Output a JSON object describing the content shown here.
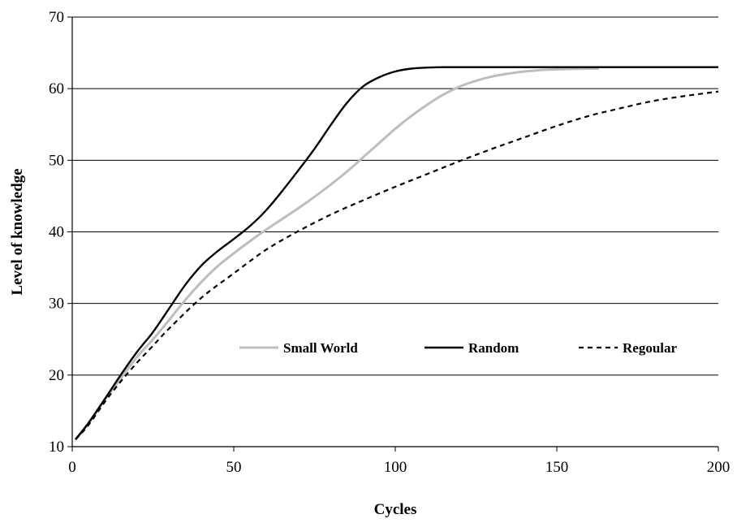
{
  "chart_data": {
    "type": "line",
    "xlabel": "Cycles",
    "ylabel": "Level of knowledge",
    "xlim": [
      0,
      200
    ],
    "ylim": [
      10,
      70
    ],
    "xticks": [
      0,
      50,
      100,
      150,
      200
    ],
    "yticks": [
      10,
      20,
      30,
      40,
      50,
      60,
      70
    ],
    "grid": "horizontal",
    "legend_placement": "inside-lower-center",
    "series": [
      {
        "name": "Small World",
        "style": "solid",
        "color": "#bdbdbd",
        "x": [
          1,
          5,
          10,
          15,
          20,
          25,
          30,
          35,
          40,
          45,
          50,
          55,
          60,
          65,
          70,
          75,
          80,
          85,
          90,
          95,
          100,
          105,
          110,
          115,
          120,
          125,
          130,
          135,
          140,
          145,
          150,
          155,
          160,
          163
        ],
        "y": [
          11,
          13.2,
          16.5,
          19.5,
          22.5,
          25,
          27.7,
          30.5,
          33,
          35.2,
          37,
          38.7,
          40.3,
          41.8,
          43.3,
          44.9,
          46.6,
          48.4,
          50.4,
          52.4,
          54.4,
          56.2,
          57.8,
          59.2,
          60.3,
          61.1,
          61.7,
          62.1,
          62.4,
          62.6,
          62.7,
          62.75,
          62.8,
          62.8
        ]
      },
      {
        "name": "Random",
        "style": "solid",
        "color": "#000000",
        "x": [
          1,
          5,
          10,
          15,
          20,
          25,
          30,
          35,
          40,
          45,
          50,
          55,
          60,
          65,
          70,
          75,
          80,
          85,
          90,
          95,
          100,
          105,
          110,
          115,
          120,
          130,
          140,
          150,
          160,
          170,
          180,
          190,
          200
        ],
        "y": [
          11,
          13.3,
          16.6,
          20,
          23.2,
          26,
          29.3,
          32.6,
          35.3,
          37.3,
          39,
          40.8,
          43,
          45.7,
          48.6,
          51.6,
          54.9,
          58,
          60.3,
          61.6,
          62.4,
          62.8,
          62.95,
          63,
          63,
          63,
          63,
          63,
          63,
          63,
          63,
          63,
          63
        ]
      },
      {
        "name": "Regoular",
        "style": "dashed",
        "color": "#000000",
        "x": [
          1,
          5,
          10,
          15,
          20,
          25,
          30,
          40,
          50,
          60,
          70,
          80,
          90,
          100,
          110,
          120,
          130,
          140,
          150,
          160,
          170,
          180,
          190,
          200
        ],
        "y": [
          11,
          13,
          16.2,
          19.1,
          21.7,
          24.1,
          26.5,
          30.8,
          34.2,
          37.5,
          40.1,
          42.4,
          44.4,
          46.3,
          48.1,
          49.9,
          51.6,
          53.2,
          54.8,
          56.2,
          57.3,
          58.3,
          59,
          59.6
        ]
      }
    ]
  }
}
